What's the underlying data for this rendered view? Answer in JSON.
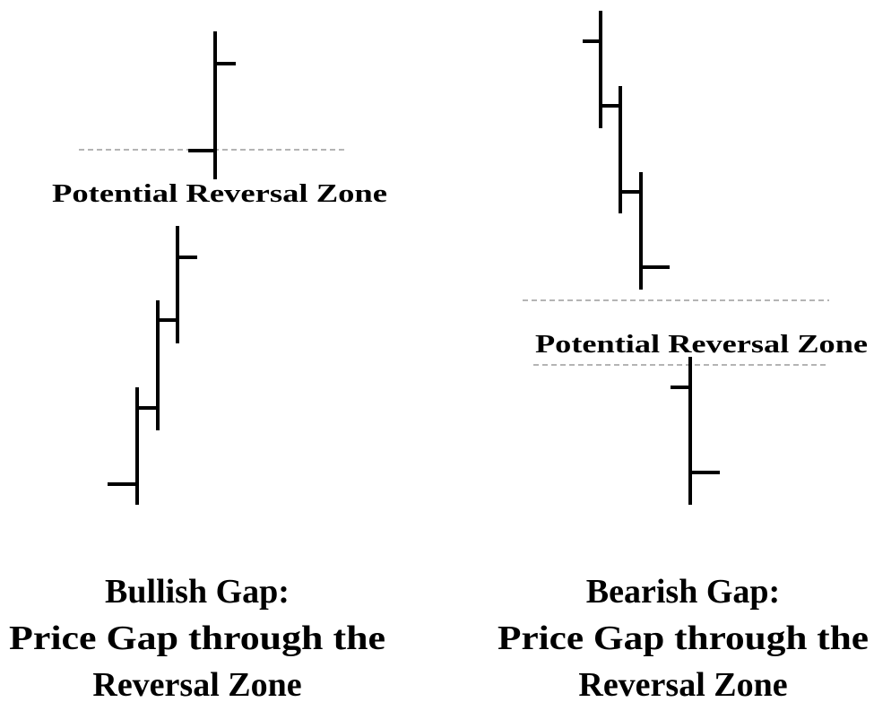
{
  "panels": [
    {
      "zone_label": "Potential Reversal Zone",
      "caption": [
        "Bullish Gap:",
        "Price Gap through the",
        "Reversal Zone"
      ]
    },
    {
      "zone_label": "Potential Reversal Zone",
      "caption": [
        "Bearish Gap:",
        "Price Gap through the",
        "Reversal Zone"
      ]
    }
  ]
}
